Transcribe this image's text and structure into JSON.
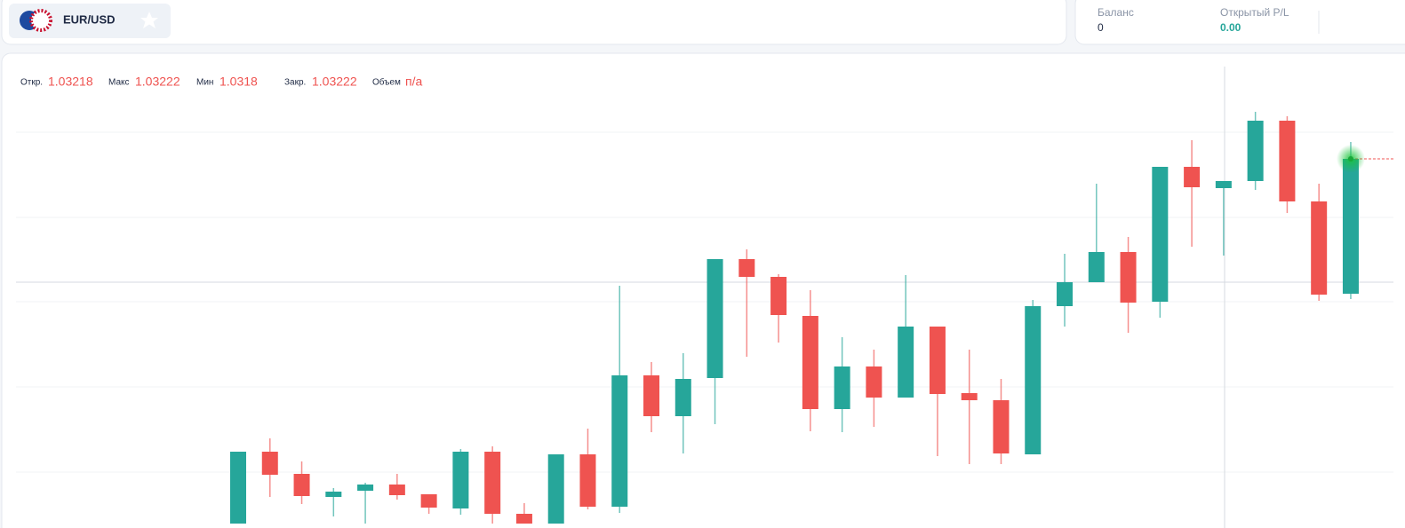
{
  "header": {
    "symbol": "EUR/USD"
  },
  "account": {
    "balance_label": "Баланс",
    "balance": "0",
    "pl_label": "Открытый P/L",
    "pl": "0.00"
  },
  "chart_data": {
    "type": "candlestick",
    "legend": {
      "open_label": "Откр.",
      "high_label": "Макс",
      "low_label": "Мин",
      "close_label": "Закр.",
      "volume_label": "Объем",
      "volume": "п/а"
    },
    "hovered": 31,
    "open": [
      1.03029,
      1.030695,
      1.03057,
      1.03044,
      1.030475,
      1.03051,
      1.030455,
      1.030375,
      1.030695,
      1.030345,
      1.03029,
      1.03068,
      1.030385,
      1.031125,
      1.030895,
      1.03111,
      1.03178,
      1.03168,
      1.03146,
      1.030935,
      1.031175,
      1.031,
      1.0314,
      1.031025,
      1.030985,
      1.03068,
      1.031515,
      1.03165,
      1.03182,
      1.03154,
      1.0323,
      1.03218,
      1.03222,
      1.03256,
      1.032105,
      1.031585
    ],
    "high": [
      1.030695,
      1.03077,
      1.03064,
      1.03049,
      1.03052,
      1.03057,
      1.030455,
      1.03071,
      1.030725,
      1.030405,
      1.03068,
      1.030825,
      1.03163,
      1.0312,
      1.03125,
      1.03178,
      1.031835,
      1.031695,
      1.031605,
      1.03134,
      1.03127,
      1.03169,
      1.0314,
      1.03127,
      1.031105,
      1.03155,
      1.03181,
      1.032205,
      1.031905,
      1.0323,
      1.03245,
      1.03222,
      1.03261,
      1.032585,
      1.032205,
      1.03244
    ],
    "low": [
      1.03029,
      1.03044,
      1.0304,
      1.03033,
      1.03029,
      1.030425,
      1.030345,
      1.03034,
      1.03029,
      1.03029,
      1.03029,
      1.03037,
      1.03035,
      1.030805,
      1.030685,
      1.03085,
      1.03123,
      1.03131,
      1.03081,
      1.030805,
      1.030835,
      1.031,
      1.03067,
      1.030625,
      1.030625,
      1.03068,
      1.0314,
      1.03165,
      1.031365,
      1.03145,
      1.03185,
      1.0318,
      1.03217,
      1.03204,
      1.031545,
      1.031555
    ],
    "close": [
      1.030695,
      1.030565,
      1.030445,
      1.03047,
      1.03051,
      1.03045,
      1.03038,
      1.030695,
      1.030345,
      1.03029,
      1.03068,
      1.030385,
      1.031125,
      1.030895,
      1.031105,
      1.03178,
      1.03168,
      1.031465,
      1.030935,
      1.031175,
      1.031,
      1.0314,
      1.03102,
      1.030985,
      1.030685,
      1.031515,
      1.03165,
      1.03182,
      1.031535,
      1.0323,
      1.032185,
      1.03222,
      1.03256,
      1.032105,
      1.03158,
      1.032345
    ],
    "ylim": [
      1.03029,
      1.032865
    ],
    "up_color": "#26a69a",
    "down_color": "#ef5350"
  }
}
